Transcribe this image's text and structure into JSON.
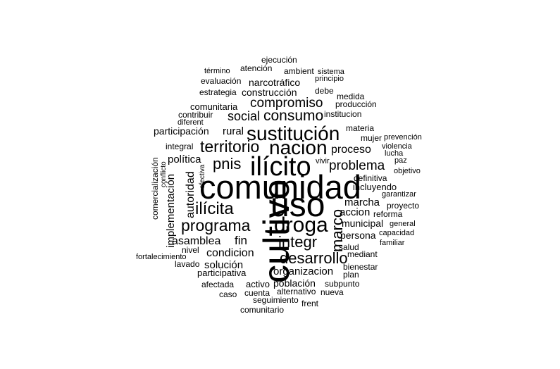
{
  "cloud": {
    "text_color": "#000000",
    "background": "#ffffff",
    "words": [
      {
        "text": "comunidad",
        "weight": 1.0
      },
      {
        "text": "cultivo",
        "weight": 0.86
      },
      {
        "text": "uso",
        "weight": 0.86
      },
      {
        "text": "ilícito",
        "weight": 0.72
      },
      {
        "text": "sustitución",
        "weight": 0.6
      },
      {
        "text": "nacion",
        "weight": 0.58
      },
      {
        "text": "droga",
        "weight": 0.6
      },
      {
        "text": "territorio",
        "weight": 0.48
      },
      {
        "text": "ilícita",
        "weight": 0.5
      },
      {
        "text": "programa",
        "weight": 0.48
      },
      {
        "text": "desarrollo",
        "weight": 0.44
      },
      {
        "text": "integr",
        "weight": 0.44
      },
      {
        "text": "marco",
        "weight": 0.44
      },
      {
        "text": "consumo",
        "weight": 0.4
      },
      {
        "text": "compromiso",
        "weight": 0.38
      },
      {
        "text": "problema",
        "weight": 0.38
      },
      {
        "text": "pnis",
        "weight": 0.4
      },
      {
        "text": "social",
        "weight": 0.34
      },
      {
        "text": "proceso",
        "weight": 0.32
      },
      {
        "text": "marcha",
        "weight": 0.3
      },
      {
        "text": "accion",
        "weight": 0.3
      },
      {
        "text": "municipal",
        "weight": 0.28
      },
      {
        "text": "persona",
        "weight": 0.28
      },
      {
        "text": "política",
        "weight": 0.32
      },
      {
        "text": "autoridad",
        "weight": 0.3
      },
      {
        "text": "implementación",
        "weight": 0.3
      },
      {
        "text": "asamblea",
        "weight": 0.3
      },
      {
        "text": "fin",
        "weight": 0.32
      },
      {
        "text": "condicion",
        "weight": 0.3
      },
      {
        "text": "solución",
        "weight": 0.28
      },
      {
        "text": "organizacion",
        "weight": 0.28
      },
      {
        "text": "población",
        "weight": 0.26
      },
      {
        "text": "participativa",
        "weight": 0.24
      },
      {
        "text": "participación",
        "weight": 0.26
      },
      {
        "text": "rural",
        "weight": 0.28
      },
      {
        "text": "construcción",
        "weight": 0.26
      },
      {
        "text": "narcotráfico",
        "weight": 0.26
      },
      {
        "text": "comunitaria",
        "weight": 0.22
      },
      {
        "text": "contribuir",
        "weight": 0.2
      },
      {
        "text": "diferent",
        "weight": 0.18
      },
      {
        "text": "integral",
        "weight": 0.2
      },
      {
        "text": "incluyendo",
        "weight": 0.22
      },
      {
        "text": "mujer",
        "weight": 0.2
      },
      {
        "text": "materia",
        "weight": 0.18
      },
      {
        "text": "institucion",
        "weight": 0.2
      },
      {
        "text": "producción",
        "weight": 0.18
      },
      {
        "text": "medida",
        "weight": 0.18
      },
      {
        "text": "debe",
        "weight": 0.18
      },
      {
        "text": "principio",
        "weight": 0.18
      },
      {
        "text": "sistema",
        "weight": 0.18
      },
      {
        "text": "ambient",
        "weight": 0.18
      },
      {
        "text": "atención",
        "weight": 0.18
      },
      {
        "text": "ejecución",
        "weight": 0.18
      },
      {
        "text": "término",
        "weight": 0.18
      },
      {
        "text": "evaluación",
        "weight": 0.18
      },
      {
        "text": "estrategia",
        "weight": 0.18
      },
      {
        "text": "comercialización",
        "weight": 0.16
      },
      {
        "text": "conflicto",
        "weight": 0.16
      },
      {
        "text": "efectiva",
        "weight": 0.16
      },
      {
        "text": "vivir",
        "weight": 0.16
      },
      {
        "text": "definitiva",
        "weight": 0.18
      },
      {
        "text": "garantizar",
        "weight": 0.16
      },
      {
        "text": "proyecto",
        "weight": 0.18
      },
      {
        "text": "reforma",
        "weight": 0.18
      },
      {
        "text": "general",
        "weight": 0.16
      },
      {
        "text": "capacidad",
        "weight": 0.16
      },
      {
        "text": "familiar",
        "weight": 0.16
      },
      {
        "text": "salud",
        "weight": 0.2
      },
      {
        "text": "mediant",
        "weight": 0.18
      },
      {
        "text": "bienestar",
        "weight": 0.2
      },
      {
        "text": "plan",
        "weight": 0.2
      },
      {
        "text": "subpunto",
        "weight": 0.18
      },
      {
        "text": "nueva",
        "weight": 0.18
      },
      {
        "text": "alternativo",
        "weight": 0.18
      },
      {
        "text": "activo",
        "weight": 0.2
      },
      {
        "text": "afectada",
        "weight": 0.2
      },
      {
        "text": "caso",
        "weight": 0.18
      },
      {
        "text": "cuenta",
        "weight": 0.18
      },
      {
        "text": "seguimiento",
        "weight": 0.18
      },
      {
        "text": "frent",
        "weight": 0.18
      },
      {
        "text": "comunitario",
        "weight": 0.18
      },
      {
        "text": "lavado",
        "weight": 0.18
      },
      {
        "text": "nivel",
        "weight": 0.18
      },
      {
        "text": "fortalecimiento",
        "weight": 0.16
      },
      {
        "text": "prevención",
        "weight": 0.16
      },
      {
        "text": "violencia",
        "weight": 0.16
      },
      {
        "text": "lucha",
        "weight": 0.16
      },
      {
        "text": "paz",
        "weight": 0.16
      },
      {
        "text": "objetivo",
        "weight": 0.16
      }
    ]
  }
}
